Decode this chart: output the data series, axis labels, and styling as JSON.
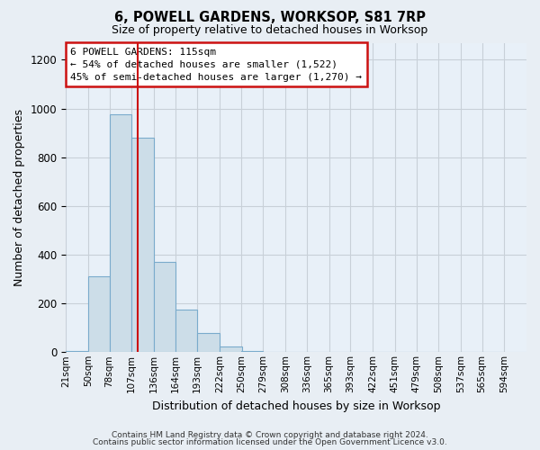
{
  "title": "6, POWELL GARDENS, WORKSOP, S81 7RP",
  "subtitle": "Size of property relative to detached houses in Worksop",
  "xlabel": "Distribution of detached houses by size in Worksop",
  "ylabel": "Number of detached properties",
  "bin_labels": [
    "21sqm",
    "50sqm",
    "78sqm",
    "107sqm",
    "136sqm",
    "164sqm",
    "193sqm",
    "222sqm",
    "250sqm",
    "279sqm",
    "308sqm",
    "336sqm",
    "365sqm",
    "393sqm",
    "422sqm",
    "451sqm",
    "479sqm",
    "508sqm",
    "537sqm",
    "565sqm",
    "594sqm"
  ],
  "bin_edges": [
    21,
    50,
    78,
    107,
    136,
    164,
    193,
    222,
    250,
    279,
    308,
    336,
    365,
    393,
    422,
    451,
    479,
    508,
    537,
    565,
    594
  ],
  "bar_heights": [
    5,
    310,
    975,
    880,
    370,
    175,
    80,
    22,
    5,
    0,
    0,
    0,
    0,
    0,
    0,
    0,
    0,
    0,
    0,
    0
  ],
  "bar_color": "#ccdde8",
  "bar_edge_color": "#7aabcc",
  "property_line_x": 115,
  "property_line_color": "#cc1111",
  "ylim_max": 1270,
  "yticks": [
    0,
    200,
    400,
    600,
    800,
    1000,
    1200
  ],
  "annotation_line1": "6 POWELL GARDENS: 115sqm",
  "annotation_line2": "← 54% of detached houses are smaller (1,522)",
  "annotation_line3": "45% of semi-detached houses are larger (1,270) →",
  "footer_line1": "Contains HM Land Registry data © Crown copyright and database right 2024.",
  "footer_line2": "Contains public sector information licensed under the Open Government Licence v3.0.",
  "background_color": "#e8eef4",
  "plot_background_color": "#e8f0f8",
  "grid_color": "#c8d0d8",
  "ann_box_color": "#cc1111",
  "ann_box_facecolor": "#ffffff"
}
